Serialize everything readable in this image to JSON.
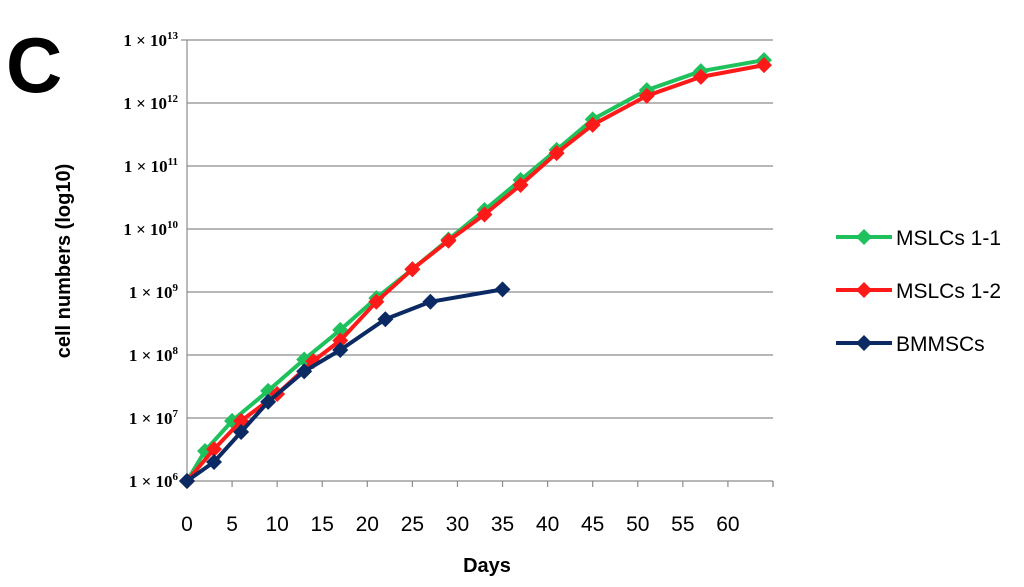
{
  "panel_label": "C",
  "chart_data": {
    "type": "line",
    "title": "",
    "xlabel": "Days",
    "ylabel": "cell numbers (log10)",
    "y_scale": "log10",
    "xlim": [
      0,
      65
    ],
    "ylim": [
      1000000,
      10000000000000
    ],
    "x_ticks": [
      "0",
      "5",
      "10",
      "15",
      "20",
      "25",
      "30",
      "35",
      "40",
      "45",
      "50",
      "55",
      "60"
    ],
    "y_ticks": [
      {
        "base": "1 × 10",
        "exp": "6"
      },
      {
        "base": "1 × 10",
        "exp": "7"
      },
      {
        "base": "1 × 10",
        "exp": "8"
      },
      {
        "base": "1 × 10",
        "exp": "9"
      },
      {
        "base": "1 × 10",
        "exp": "10"
      },
      {
        "base": "1 × 10",
        "exp": "11"
      },
      {
        "base": "1 × 10",
        "exp": "12"
      },
      {
        "base": "1 × 10",
        "exp": "13"
      }
    ],
    "grid": "horizontal",
    "legend_position": "right",
    "series": [
      {
        "name": "MSLCs 1-1",
        "color": "#1fc15c",
        "marker": "diamond",
        "x": [
          0,
          2,
          5,
          9,
          13,
          17,
          21,
          25,
          29,
          33,
          37,
          41,
          45,
          51,
          57,
          64
        ],
        "y": [
          1000000,
          3000000,
          9000000,
          27000000,
          85000000,
          250000000,
          800000000,
          2300000000,
          6800000000,
          20000000000,
          60000000000,
          180000000000,
          550000000000,
          1600000000000,
          3200000000000,
          4800000000000
        ]
      },
      {
        "name": "MSLCs 1-2",
        "color": "#ff1a1a",
        "marker": "diamond",
        "x": [
          0,
          3,
          6,
          10,
          14,
          17,
          21,
          25,
          29,
          33,
          37,
          41,
          45,
          51,
          57,
          64
        ],
        "y": [
          1000000,
          3200000,
          9000000,
          24000000,
          80000000,
          170000000,
          700000000,
          2300000000,
          6500000000,
          17000000000,
          50000000000,
          160000000000,
          450000000000,
          1300000000000,
          2600000000000,
          4000000000000
        ]
      },
      {
        "name": "BMMSCs",
        "color": "#0b2a63",
        "marker": "diamond",
        "x": [
          0,
          3,
          6,
          9,
          13,
          17,
          22,
          27,
          35
        ],
        "y": [
          1000000,
          2000000,
          6000000,
          18000000,
          55000000,
          120000000,
          370000000,
          700000000,
          1100000000
        ]
      }
    ]
  }
}
